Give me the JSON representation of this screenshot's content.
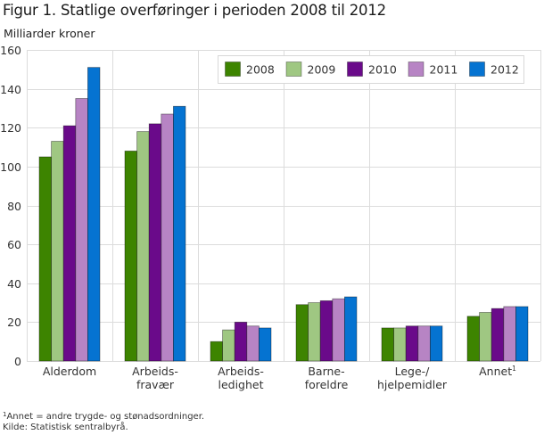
{
  "title": "Figur 1. Statlige overføringer i perioden 2008 til 2012",
  "unit_label": "Milliarder kroner",
  "footnote_marker": "1",
  "footnote_text": "Annet = andre trygde- og stønadsordninger.",
  "source": "Kilde: Statistisk sentralbyrå.",
  "colors": {
    "2008": "#3d8400",
    "2009": "#9fc782",
    "2010": "#6a0a8a",
    "2011": "#b784c4",
    "2012": "#0573d1",
    "grid": "#dcdcdc",
    "legend_border": "#d8d8d8"
  },
  "chart_data": {
    "type": "bar",
    "title": "Figur 1. Statlige overføringer i perioden 2008 til 2012",
    "xlabel": "",
    "ylabel": "Milliarder kroner",
    "ylim": [
      0,
      160
    ],
    "yticks": [
      0,
      20,
      40,
      60,
      80,
      100,
      120,
      140,
      160
    ],
    "grid": true,
    "legend_position": "top-right",
    "categories": [
      [
        "Alderdom"
      ],
      [
        "Arbeids-",
        "fravær"
      ],
      [
        "Arbeids-",
        "ledighet"
      ],
      [
        "Barne-",
        "foreldre"
      ],
      [
        "Lege-/",
        "hjelpemidler"
      ],
      [
        "Annet"
      ]
    ],
    "category_superscripts": [
      "",
      "",
      "",
      "",
      "",
      "1"
    ],
    "series": [
      {
        "name": "2008",
        "values": [
          105,
          108,
          10,
          29,
          17,
          23
        ]
      },
      {
        "name": "2009",
        "values": [
          113,
          118,
          16,
          30,
          17,
          25
        ]
      },
      {
        "name": "2010",
        "values": [
          121,
          122,
          20,
          31,
          18,
          27
        ]
      },
      {
        "name": "2011",
        "values": [
          135,
          127,
          18,
          32,
          18,
          28
        ]
      },
      {
        "name": "2012",
        "values": [
          151,
          131,
          17,
          33,
          18,
          28
        ]
      }
    ]
  }
}
